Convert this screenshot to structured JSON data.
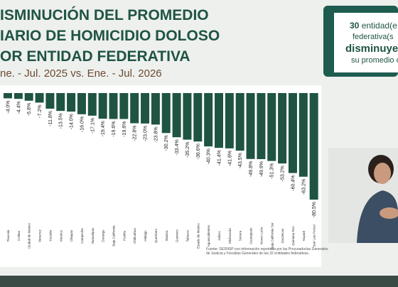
{
  "header": {
    "title_lines": [
      "ISMINUCIÓN DEL PROMEDIO",
      "IARIO DE HOMICIDIO DOLOSO",
      "OR ENTIDAD FEDERATIVA"
    ],
    "subtitle": "ne. - Jul. 2025 vs. Ene. - Jul. 2026"
  },
  "chart_data": {
    "type": "bar",
    "color": "#1f5443",
    "categories": [
      "Tlaxcala",
      "Colima",
      "Ciudad de México",
      "Veracruz",
      "Yucatán",
      "Morelos",
      "Chiapas",
      "Campeche",
      "Tamaulipas",
      "Durango",
      "Baja California",
      "Puebla",
      "Chihuahua",
      "Hidalgo",
      "Querétaro",
      "Sinaloa",
      "Guerrero",
      "Tabasco",
      "Estado de México",
      "Aguascalientes",
      "Jalisco",
      "Michoacán",
      "Sonora",
      "Guanajuato",
      "Nuevo León",
      "Baja California Sur",
      "Zacatecas",
      "Quintana Roo",
      "Nayarit",
      "San Luis Potosí"
    ],
    "values": [
      -4.0,
      -4.4,
      -5.8,
      -7.2,
      -11.8,
      -13.5,
      -14.0,
      -16.0,
      -17.1,
      -19.4,
      -19.6,
      -19.6,
      -22.8,
      -23.0,
      -23.8,
      -30.2,
      -33.4,
      -35.2,
      -36.6,
      -40.3,
      -41.4,
      -41.8,
      -43.5,
      -49.8,
      -49.9,
      -51.3,
      -53.2,
      -60.4,
      -63.2,
      -80.5
    ],
    "value_labels": [
      "-4.0%",
      "-4.4%",
      "-5.8%",
      "-7.2%",
      "-11.8%",
      "-13.5%",
      "-14.0%",
      "-16.0%",
      "-17.1%",
      "-19.4%",
      "-19.6%",
      "-19.6%",
      "-22.8%",
      "-23.0%",
      "-23.8%",
      "-30.2%",
      "-33.4%",
      "-35.2%",
      "-36.6%",
      "-40.3%",
      "-41.4%",
      "-41.8%",
      "-43.5%",
      "-49.8%",
      "-49.9%",
      "-51.3%",
      "-53.2%",
      "-60.4%",
      "-63.2%",
      "-80.5%"
    ]
  },
  "source": [
    "Fuente: SESNSP con información reportada por las Procuradurías Generales",
    "de Justicia y Fiscalías Generales de las 32 entidades federativas."
  ],
  "side_panel": {
    "number": "30",
    "lines": [
      "entidad(e",
      "federativa(s",
      "disminuye",
      "su promedio d"
    ]
  }
}
